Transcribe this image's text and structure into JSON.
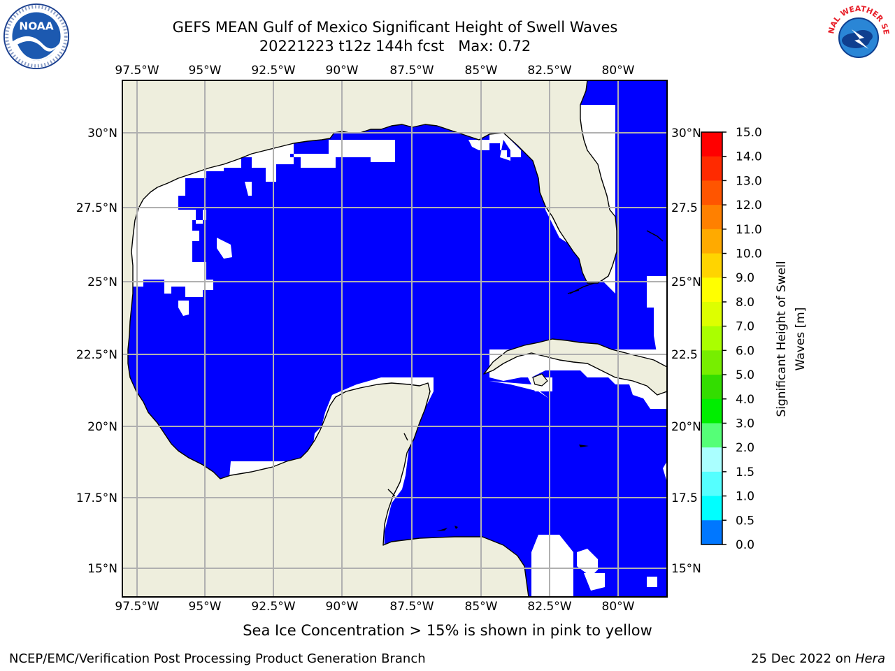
{
  "header": {
    "title_line1": "GEFS MEAN Gulf of Mexico Significant Height of Swell Waves",
    "title_line2_run": "20221223 t12z 144h fcst",
    "title_line2_max": "Max: 0.72"
  },
  "logos": {
    "left_icon": "noaa-logo",
    "left_text": "NOAA",
    "right_icon": "nws-logo",
    "right_text": "NATIONAL WEATHER SERVICE"
  },
  "map": {
    "lon_labels": [
      "97.5°W",
      "95°W",
      "92.5°W",
      "90°W",
      "87.5°W",
      "85°W",
      "82.5°W",
      "80°W"
    ],
    "lat_labels": [
      "30°N",
      "27.5°N",
      "25°N",
      "22.5°N",
      "20°N",
      "17.5°N",
      "15°N"
    ],
    "lon_range": [
      -98,
      -78
    ],
    "lat_range": [
      14,
      32
    ],
    "lat_labels_right": [
      "30°N",
      "27.5",
      "25°N",
      "22.5",
      "20°N",
      "17.5",
      "15°N"
    ],
    "colors": {
      "land": "#eeeedd",
      "ocean_low": "#0000ff",
      "ocean_mid": "#0077ff",
      "no_data": "#ffffff",
      "grid": "#b0b0b0"
    }
  },
  "colorbar": {
    "label": "Significant Height of Swell Waves [m]",
    "label_line1": "Significant Height of Swell",
    "label_line2": "Waves [m]",
    "ticks": [
      "15.0",
      "14.0",
      "13.0",
      "12.0",
      "11.0",
      "10.0",
      "9.0",
      "8.0",
      "7.0",
      "6.0",
      "5.0",
      "4.0",
      "3.0",
      "2.0",
      "1.5",
      "1.0",
      "0.5",
      "0.0"
    ],
    "colors_top_to_bottom": [
      "#ff0000",
      "#ff2a00",
      "#ff5500",
      "#ff8000",
      "#ffaa00",
      "#ffd400",
      "#ffff00",
      "#ddff00",
      "#aaff00",
      "#77ee00",
      "#33dd00",
      "#00ee00",
      "#55ff77",
      "#aaffff",
      "#55ffff",
      "#00ffff",
      "#0077ff",
      "#0000ff"
    ]
  },
  "subnote": "Sea Ice Concentration > 15% is shown in pink to yellow",
  "footer": {
    "left": "NCEP/EMC/Verification Post Processing Product Generation Branch",
    "right_date": "25 Dec 2022 on ",
    "right_host": "Hera"
  }
}
